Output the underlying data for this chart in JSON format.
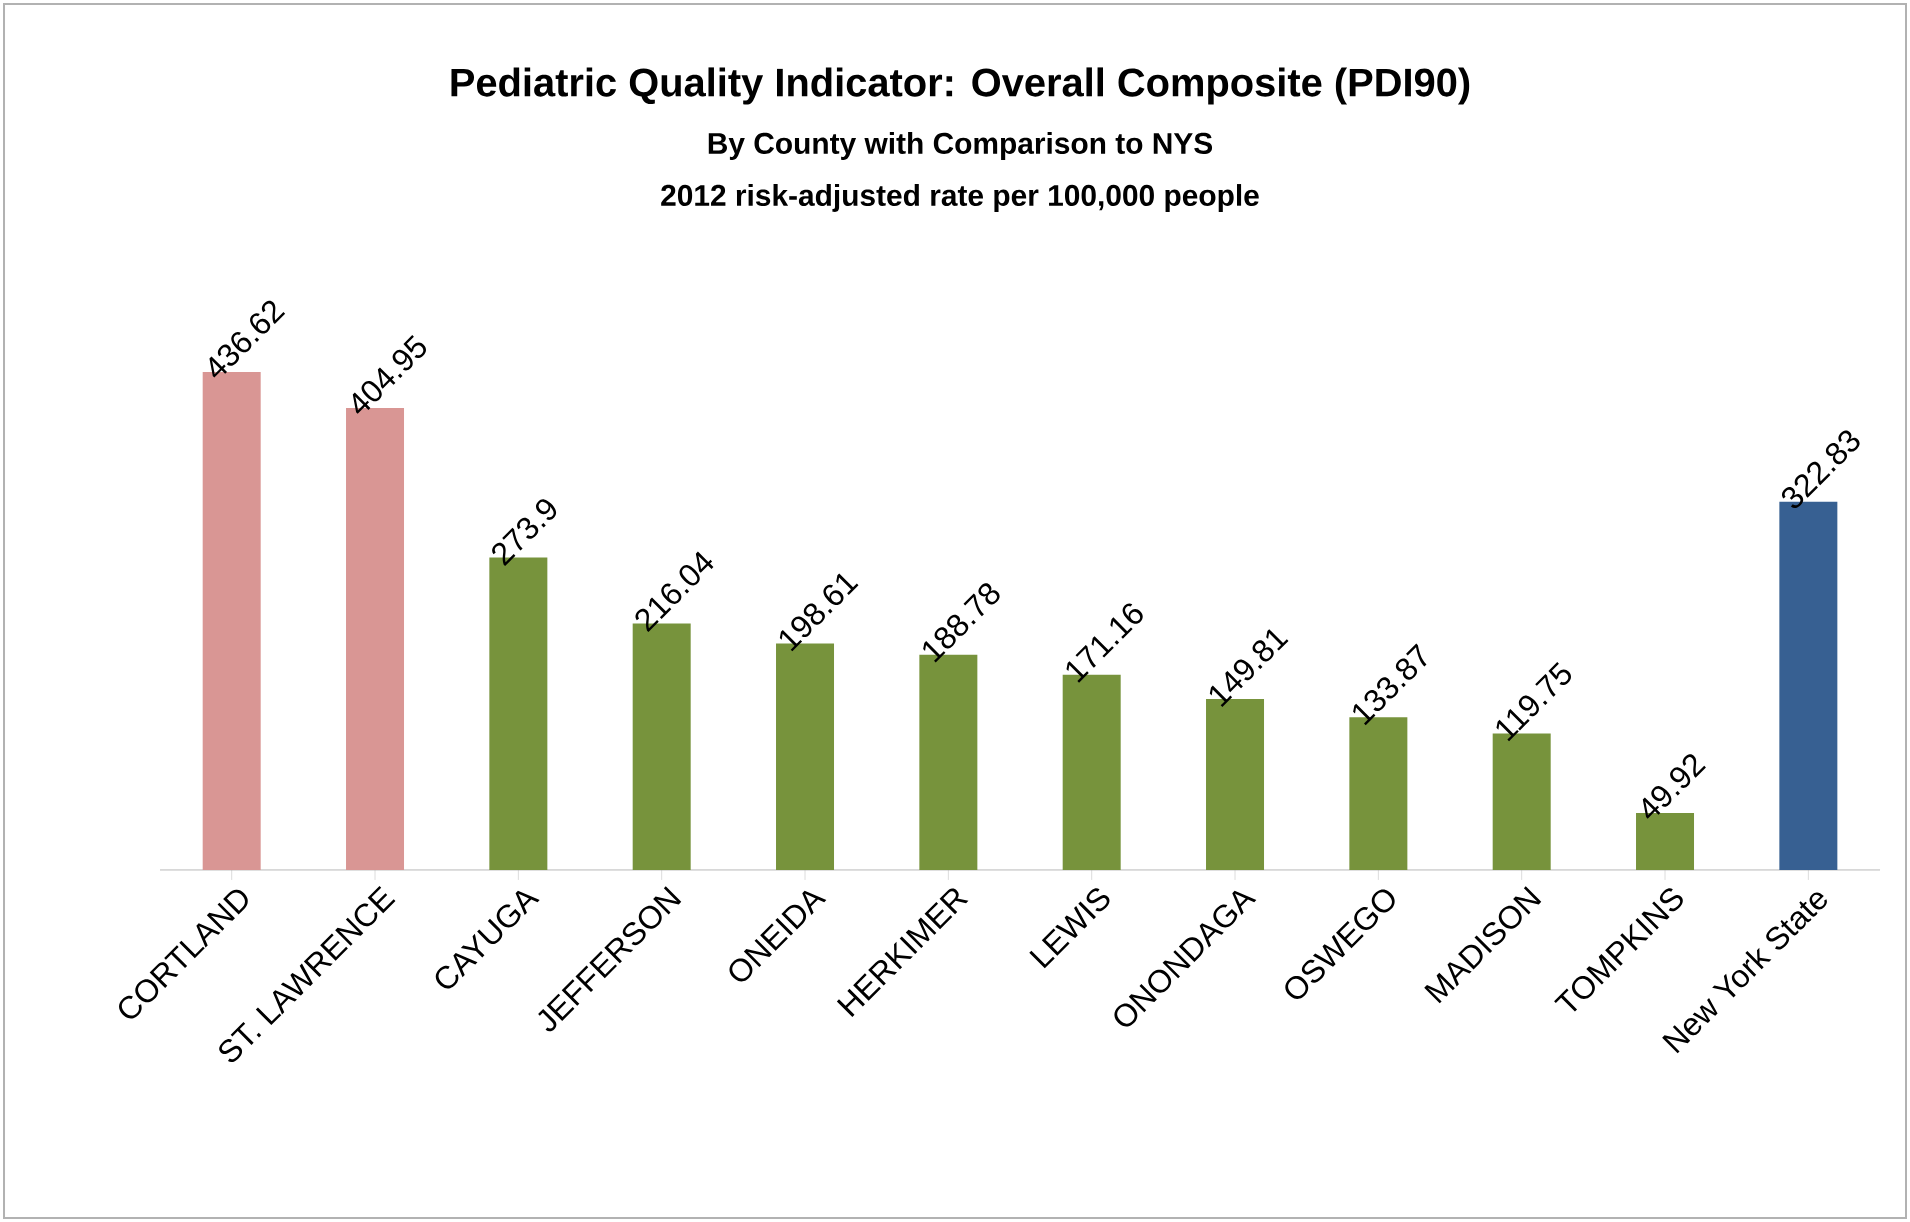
{
  "chart_data": {
    "type": "bar",
    "title": "Pediatric Quality Indicator: Overall Composite (PDI90)",
    "subtitle": "By County with Comparison to NYS",
    "annotations": [
      "2012 risk-adjusted rate per 100,000 people"
    ],
    "categories": [
      "CORTLAND",
      "ST. LAWRENCE",
      "CAYUGA",
      "JEFFERSON",
      "ONEIDA",
      "HERKIMER",
      "LEWIS",
      "ONONDAGA",
      "OSWEGO",
      "MADISON",
      "TOMPKINS",
      "New York State"
    ],
    "values": [
      436.62,
      404.95,
      273.9,
      216.04,
      198.61,
      188.78,
      171.16,
      149.81,
      133.87,
      119.75,
      49.92,
      322.83
    ],
    "colors": [
      "#d99694",
      "#d99694",
      "#77933c",
      "#77933c",
      "#77933c",
      "#77933c",
      "#77933c",
      "#77933c",
      "#77933c",
      "#77933c",
      "#77933c",
      "#376092"
    ],
    "data_labels": true
  }
}
